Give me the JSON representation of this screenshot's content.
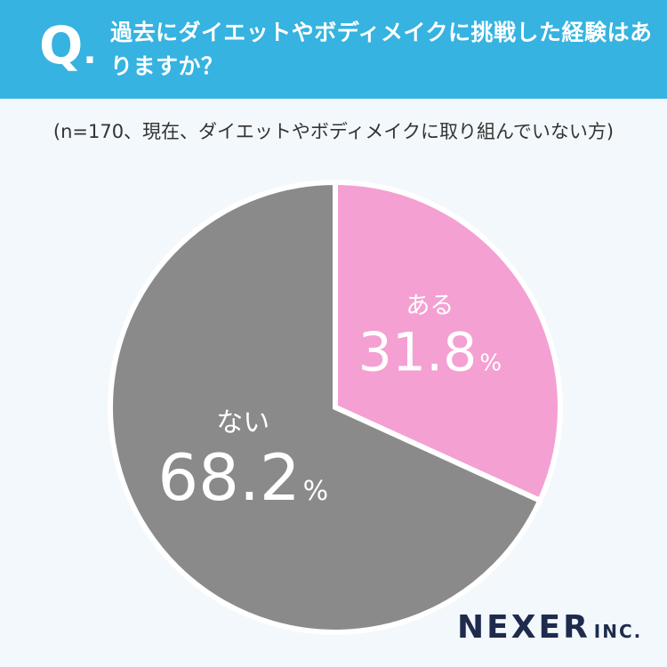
{
  "header": {
    "q_letter": "Q",
    "q_dot": ".",
    "question": "過去にダイエットやボディメイクに挑戦した経験はありますか？"
  },
  "note": "(n=170、現在、ダイエットやボディメイクに取り組んでいない方)",
  "chart_data": {
    "type": "pie",
    "slices": [
      {
        "label": "ある",
        "value": 31.8,
        "display": "31.8",
        "unit": "%",
        "color": "#f4a0d2"
      },
      {
        "label": "ない",
        "value": 68.2,
        "display": "68.2",
        "unit": "%",
        "color": "#8a8a8a"
      }
    ]
  },
  "brand": {
    "name": "NEXER",
    "suffix": "INC."
  },
  "colors": {
    "header_bg": "#36b3e0",
    "background": "#f2f8fc",
    "brand": "#1f2b4d"
  }
}
